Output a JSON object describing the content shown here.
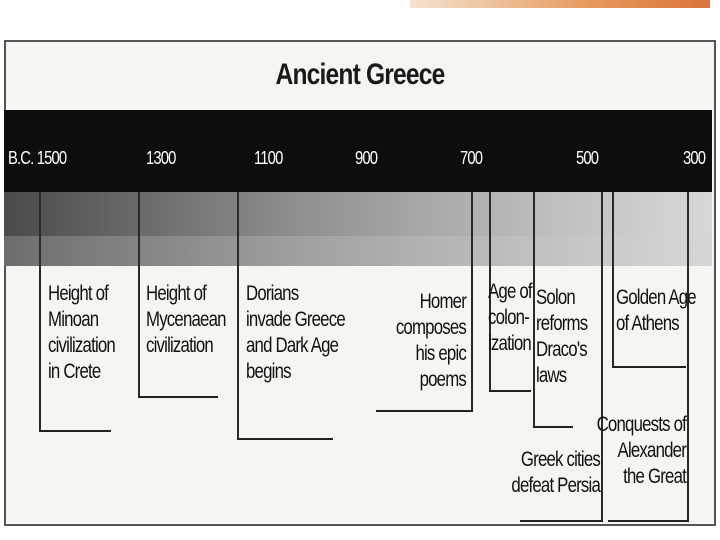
{
  "title": "Ancient Greece",
  "years": [
    "B.C. 1500",
    "1300",
    "1100",
    "900",
    "700",
    "500",
    "300"
  ],
  "events": [
    {
      "id": "minoan",
      "text": "Height of\nMinoan\ncivilization\nin Crete"
    },
    {
      "id": "mycenaean",
      "text": "Height of\nMycenaean\ncivilization"
    },
    {
      "id": "dorians",
      "text": "Dorians\ninvade Greece\nand Dark Age\nbegins"
    },
    {
      "id": "homer",
      "text": "Homer\ncomposes\nhis epic poems"
    },
    {
      "id": "colonization",
      "text": "Age of\ncolon-\nization"
    },
    {
      "id": "solon",
      "text": "Solon\nreforms\nDraco's\nlaws"
    },
    {
      "id": "persia",
      "text": "Greek cities\ndefeat Persia"
    },
    {
      "id": "golden-age",
      "text": "Golden Age\nof Athens"
    },
    {
      "id": "alexander",
      "text": "Conquests of\nAlexander\nthe Great"
    }
  ]
}
